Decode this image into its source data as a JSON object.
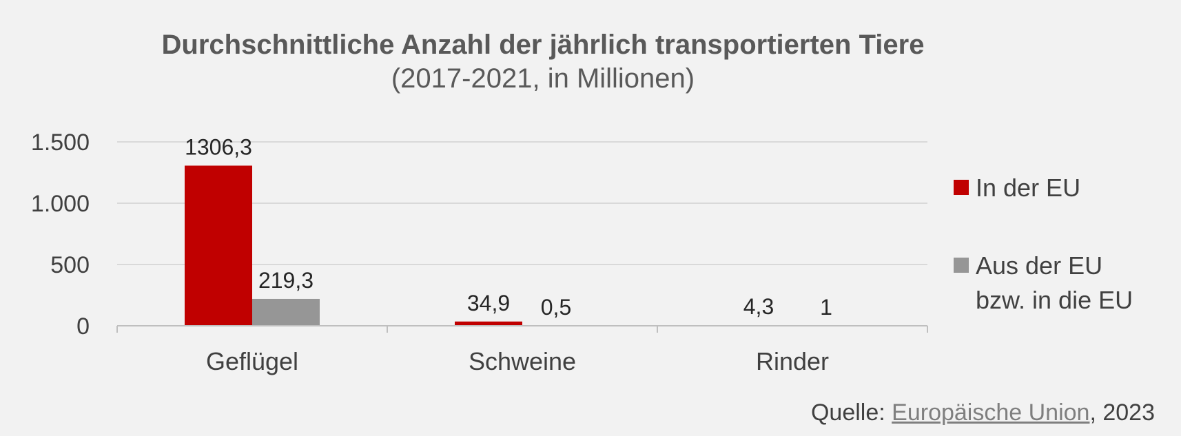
{
  "chart_data": {
    "type": "bar",
    "title": "Durchschnittliche Anzahl der jährlich transportierten Tiere",
    "subtitle": "(2017-2021, in Millionen)",
    "categories": [
      "Geflügel",
      "Schweine",
      "Rinder"
    ],
    "series": [
      {
        "name": "In der EU",
        "values": [
          1306.3,
          34.9,
          4.3
        ],
        "labels": [
          "1306,3",
          "34,9",
          "4,3"
        ],
        "color": "#c00000"
      },
      {
        "name": "Aus der EU bzw. in die EU",
        "name_lines": [
          "Aus der EU",
          "bzw. in die EU"
        ],
        "values": [
          219.3,
          0.5,
          1
        ],
        "labels": [
          "219,3",
          "0,5",
          "1"
        ],
        "color": "#969696"
      }
    ],
    "yticks": [
      0,
      500,
      1000,
      1500
    ],
    "ytick_labels": [
      "0",
      "500",
      "1.000",
      "1.500"
    ],
    "ylim": [
      0,
      1500
    ],
    "grid": true,
    "legend_position": "right"
  },
  "source": {
    "prefix": "Quelle: ",
    "link_text": "Europäische Union",
    "suffix": ", 2023"
  }
}
